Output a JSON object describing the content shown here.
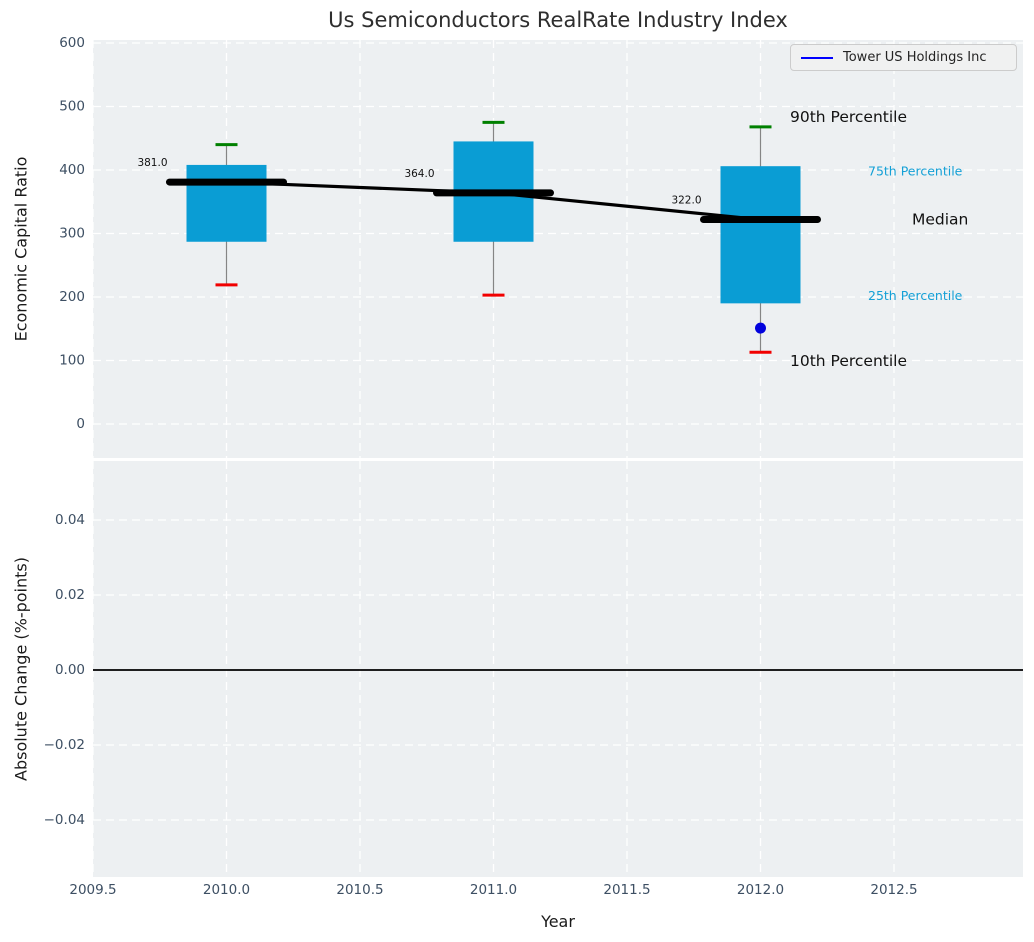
{
  "title": "Us Semiconductors RealRate Industry Index",
  "legend": {
    "label": "Tower US Holdings Inc"
  },
  "colors": {
    "box_fill": "#0a9dd4",
    "median": "#000000",
    "trend_line": "#000000",
    "whisker": "#858585",
    "cap_top": "#008000",
    "cap_bottom": "#f10000",
    "company_point": "#0202dd",
    "legend_line": "#0000ff",
    "panel_bg": "#edf0f2",
    "grid": "#ffffff",
    "tick_label": "#3d4f63",
    "cyan_annotation": "#14a0d6",
    "black_annotation": "#111111",
    "value_label": "#111111",
    "zero_line": "#000000"
  },
  "chart_data": {
    "type": "box",
    "title": "Us Semiconductors RealRate Industry Index",
    "xlabel": "Year",
    "xlim": [
      2009.5,
      2012.98
    ],
    "grid": true,
    "legend_position": "upper right",
    "xticks": [
      {
        "v": 2009.5,
        "label": "2009.5"
      },
      {
        "v": 2010.0,
        "label": "2010.0"
      },
      {
        "v": 2010.5,
        "label": "2010.5"
      },
      {
        "v": 2011.0,
        "label": "2011.0"
      },
      {
        "v": 2011.5,
        "label": "2011.5"
      },
      {
        "v": 2012.0,
        "label": "2012.0"
      },
      {
        "v": 2012.5,
        "label": "2012.5"
      }
    ],
    "top_panel": {
      "ylabel": "Economic Capital Ratio",
      "ylim": [
        -53,
        605
      ],
      "yticks": [
        {
          "v": 0,
          "label": "0"
        },
        {
          "v": 100,
          "label": "100"
        },
        {
          "v": 200,
          "label": "200"
        },
        {
          "v": 300,
          "label": "300"
        },
        {
          "v": 400,
          "label": "400"
        },
        {
          "v": 500,
          "label": "500"
        },
        {
          "v": 600,
          "label": "600"
        }
      ],
      "boxes": [
        {
          "year": 2010,
          "p10": 219,
          "p25": 287,
          "median": 381,
          "p75": 408,
          "p90": 440,
          "median_label": "381.0"
        },
        {
          "year": 2011,
          "p10": 203,
          "p25": 287,
          "median": 364,
          "p75": 445,
          "p90": 475,
          "median_label": "364.0"
        },
        {
          "year": 2012,
          "p10": 113,
          "p25": 190,
          "median": 322,
          "p75": 406,
          "p90": 468,
          "median_label": "322.0"
        }
      ],
      "median_trend": [
        [
          2010,
          381
        ],
        [
          2011,
          364
        ],
        [
          2012,
          322
        ]
      ],
      "company_series": {
        "name": "Tower US Holdings Inc",
        "points": [
          {
            "year": 2012,
            "value": 151
          }
        ]
      },
      "annotations": [
        {
          "text": "90th Percentile",
          "style": "black-large",
          "anchor_value": 468
        },
        {
          "text": "75th Percentile",
          "style": "cyan-small",
          "anchor_value": 406
        },
        {
          "text": "Median",
          "style": "black-large",
          "anchor_value": 322
        },
        {
          "text": "25th Percentile",
          "style": "cyan-small",
          "anchor_value": 190
        },
        {
          "text": "10th Percentile",
          "style": "black-large",
          "anchor_value": 113
        }
      ]
    },
    "bottom_panel": {
      "ylabel": "Absolute Change (%-points)",
      "ylim": [
        -0.0555,
        0.0557
      ],
      "yticks": [
        {
          "v": -0.04,
          "label": "−0.04"
        },
        {
          "v": -0.02,
          "label": "−0.02"
        },
        {
          "v": 0.0,
          "label": "0.00"
        },
        {
          "v": 0.02,
          "label": "0.02"
        },
        {
          "v": 0.04,
          "label": "0.04"
        }
      ],
      "zero_line": 0.0
    }
  }
}
